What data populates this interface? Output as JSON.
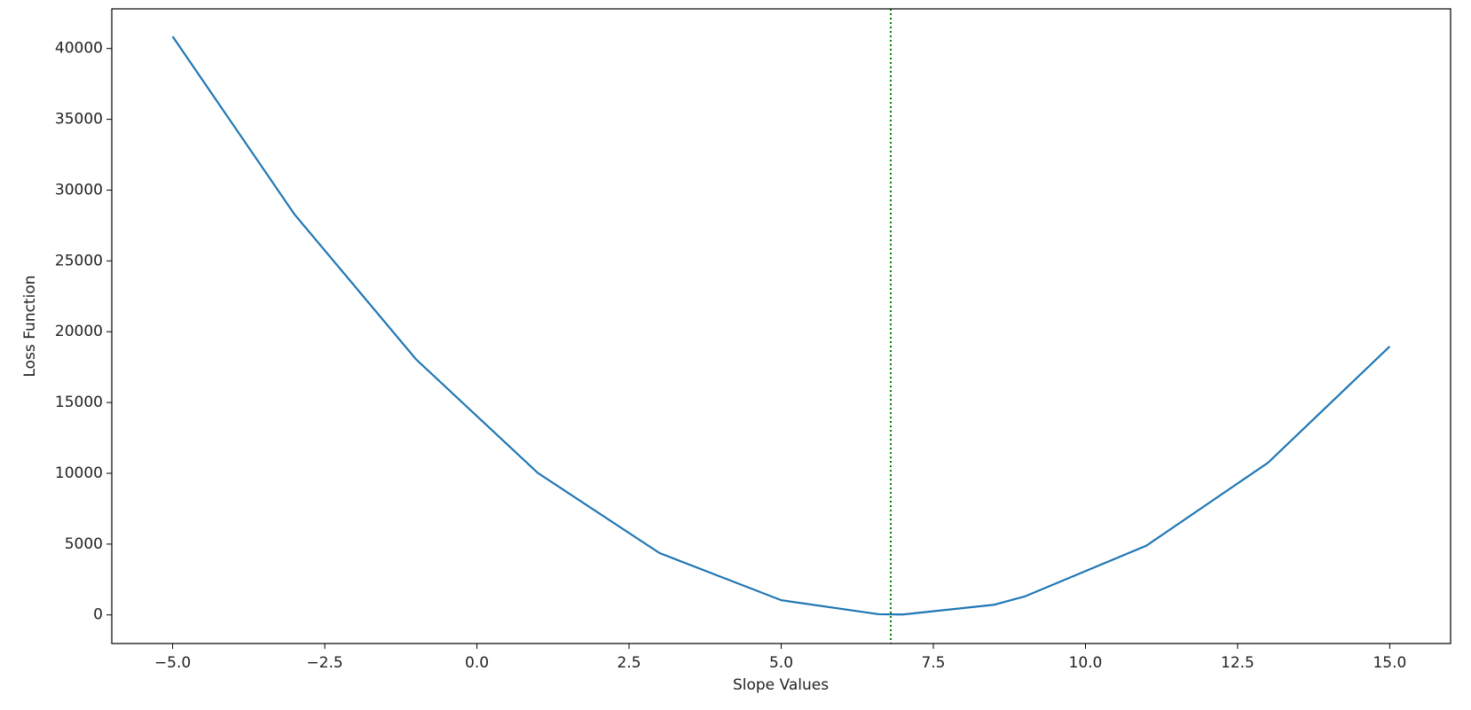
{
  "chart_data": {
    "type": "line",
    "x_label": "Slope Values",
    "y_label": "Loss Function",
    "x": [
      -5,
      -3,
      -1,
      1,
      3,
      5,
      6.6,
      7,
      8.5,
      9,
      11,
      13,
      15
    ],
    "series": [
      {
        "color": "#1f77b4",
        "values": [
          40850,
          28300,
          18050,
          10030,
          4370,
          1040,
          50,
          30,
          720,
          1300,
          4890,
          10750,
          18960
        ]
      }
    ],
    "vline": {
      "x": 6.8,
      "color": "green"
    },
    "xlim": [
      -6,
      16
    ],
    "xticks": [
      {
        "value": -5,
        "label": "−5.0"
      },
      {
        "value": -2.5,
        "label": "−2.5"
      },
      {
        "value": 0,
        "label": "0.0"
      },
      {
        "value": 2.5,
        "label": "2.5"
      },
      {
        "value": 5,
        "label": "5.0"
      },
      {
        "value": 7.5,
        "label": "7.5"
      },
      {
        "value": 10,
        "label": "10.0"
      },
      {
        "value": 12.5,
        "label": "12.5"
      },
      {
        "value": 15,
        "label": "15.0"
      }
    ],
    "ylim": [
      -2020,
      42800
    ],
    "yticks": [
      0,
      5000,
      10000,
      15000,
      20000,
      25000,
      30000,
      35000,
      40000
    ]
  }
}
